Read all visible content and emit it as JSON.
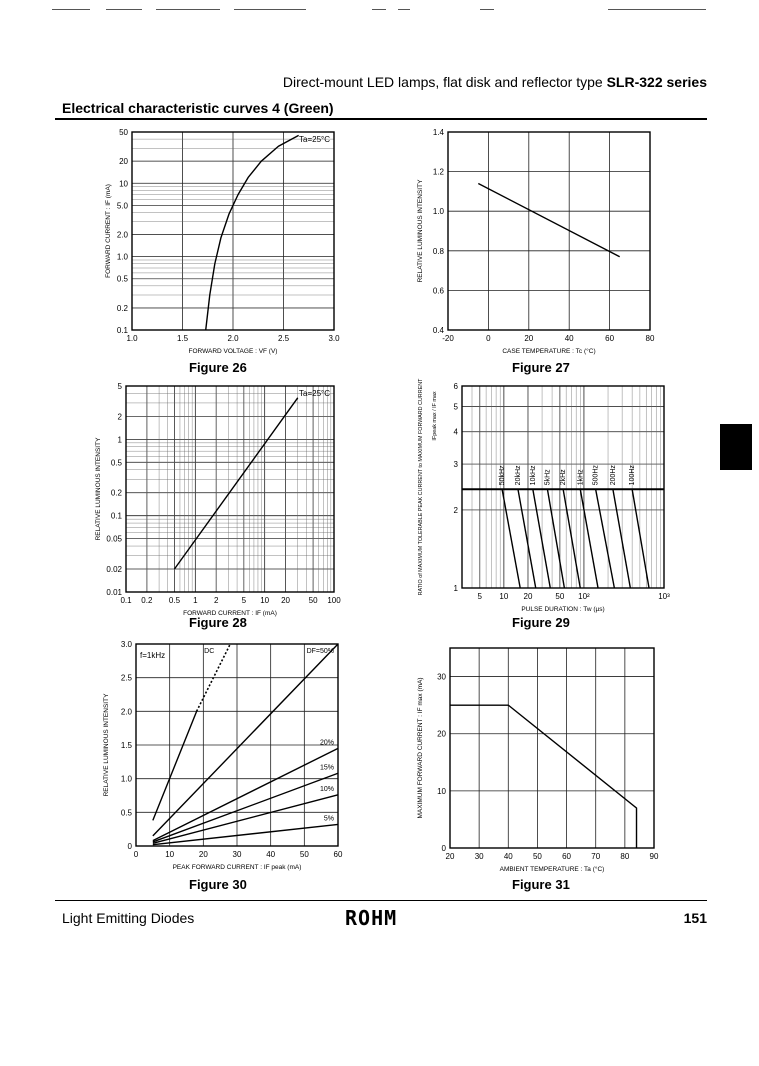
{
  "header": {
    "title_prefix": "Direct-mount LED lamps, flat disk and reflector type",
    "title_series": "SLR-322 series"
  },
  "section_title": "Electrical characteristic curves 4 (Green)",
  "footer": {
    "left": "Light Emitting Diodes",
    "logo": "ROHM",
    "page": "151"
  },
  "chart_data": [
    {
      "id": "fig26",
      "type": "line",
      "caption": "Figure 26",
      "xlabel": "FORWARD VOLTAGE : VF (V)",
      "ylabel": "FORWARD CURRENT : IF (mA)",
      "annotation": "Ta=25°C",
      "x_scale": "linear",
      "y_scale": "log",
      "xlim": [
        1.0,
        3.0
      ],
      "ylim": [
        0.1,
        50
      ],
      "x_ticks": [
        1.0,
        1.5,
        2.0,
        2.5,
        3.0
      ],
      "x_tick_labels": [
        "1.0",
        "1.5",
        "2.0",
        "2.5",
        "3.0"
      ],
      "y_ticks": [
        0.1,
        0.2,
        0.5,
        1.0,
        2.0,
        5.0,
        10,
        20,
        50
      ],
      "y_tick_labels": [
        "0.1",
        "0.2",
        "0.5",
        "1.0",
        "2.0",
        "5.0",
        "10",
        "20",
        "50"
      ],
      "series": [
        {
          "x": [
            1.73,
            1.77,
            1.82,
            1.88,
            1.96,
            2.05,
            2.15,
            2.28,
            2.45,
            2.65
          ],
          "y": [
            0.1,
            0.3,
            0.8,
            1.8,
            3.8,
            7,
            12,
            20,
            32,
            45
          ]
        }
      ]
    },
    {
      "id": "fig27",
      "type": "line",
      "caption": "Figure 27",
      "xlabel": "CASE TEMPERATURE : Tc (°C)",
      "ylabel": "RELATIVE LUMINOUS INTENSITY",
      "x_scale": "linear",
      "y_scale": "linear",
      "xlim": [
        -20,
        80
      ],
      "ylim": [
        0.4,
        1.4
      ],
      "x_ticks": [
        -20,
        0,
        20,
        40,
        60,
        80
      ],
      "x_tick_labels": [
        "-20",
        "0",
        "20",
        "40",
        "60",
        "80"
      ],
      "y_ticks": [
        0.4,
        0.6,
        0.8,
        1.0,
        1.2,
        1.4
      ],
      "y_tick_labels": [
        "0.4",
        "0.6",
        "0.8",
        "1.0",
        "1.2",
        "1.4"
      ],
      "series": [
        {
          "x": [
            -5,
            65
          ],
          "y": [
            1.14,
            0.77
          ]
        }
      ]
    },
    {
      "id": "fig28",
      "type": "line",
      "caption": "Figure 28",
      "xlabel": "FORWARD CURRENT : IF (mA)",
      "ylabel": "RELATIVE LUMINOUS INTENSITY",
      "annotation": "Ta=25°C",
      "x_scale": "log",
      "y_scale": "log",
      "xlim": [
        0.1,
        100
      ],
      "ylim": [
        0.01,
        5
      ],
      "x_ticks": [
        0.1,
        0.2,
        0.5,
        1,
        2,
        5,
        10,
        20,
        50,
        100
      ],
      "x_tick_labels": [
        "0.1",
        "0.2",
        "0.5",
        "1",
        "2",
        "5",
        "10",
        "20",
        "50",
        "100"
      ],
      "y_ticks": [
        0.01,
        0.02,
        0.05,
        0.1,
        0.2,
        0.5,
        1,
        2,
        5
      ],
      "y_tick_labels": [
        "0.01",
        "0.02",
        "0.05",
        "0.1",
        "0.2",
        "0.5",
        "1",
        "2",
        "5"
      ],
      "series": [
        {
          "x": [
            0.5,
            30
          ],
          "y": [
            0.02,
            3.5
          ]
        }
      ]
    },
    {
      "id": "fig29",
      "type": "line",
      "caption": "Figure 29",
      "xlabel": "PULSE DURATION : Tw (µs)",
      "ylabel": "RATIO of MAXIMUM TOLERABLE PEAK CURRENT to MAXIMUM FORWARD CURRENT",
      "ylabel_side": "IFpeak max / IF max",
      "x_scale": "log",
      "y_scale": "log",
      "xlim": [
        3,
        1000
      ],
      "ylim": [
        1,
        6
      ],
      "x_ticks": [
        5,
        10,
        20,
        50,
        100,
        1000
      ],
      "x_tick_labels": [
        "5",
        "10",
        "20",
        "50",
        "10²",
        "10³"
      ],
      "y_ticks": [
        1,
        2,
        3,
        4,
        5,
        6
      ],
      "y_tick_labels": [
        "1",
        "2",
        "3",
        "4",
        "5",
        "6"
      ],
      "ceiling": 2.4,
      "series": [
        {
          "name": "50kHz",
          "x": [
            9.5,
            16
          ],
          "y": [
            2.4,
            1
          ]
        },
        {
          "name": "20kHz",
          "x": [
            15,
            25
          ],
          "y": [
            2.4,
            1
          ]
        },
        {
          "name": "10kHz",
          "x": [
            23,
            38
          ],
          "y": [
            2.4,
            1
          ]
        },
        {
          "name": "5kHz",
          "x": [
            35,
            57
          ],
          "y": [
            2.4,
            1
          ]
        },
        {
          "name": "2kHz",
          "x": [
            55,
            90
          ],
          "y": [
            2.4,
            1
          ]
        },
        {
          "name": "1kHz",
          "x": [
            90,
            150
          ],
          "y": [
            2.4,
            1
          ]
        },
        {
          "name": "500Hz",
          "x": [
            140,
            240
          ],
          "y": [
            2.4,
            1
          ]
        },
        {
          "name": "200Hz",
          "x": [
            230,
            380
          ],
          "y": [
            2.4,
            1
          ]
        },
        {
          "name": "100Hz",
          "x": [
            400,
            650
          ],
          "y": [
            2.4,
            1
          ]
        }
      ]
    },
    {
      "id": "fig30",
      "type": "line",
      "caption": "Figure 30",
      "xlabel": "PEAK FORWARD CURRENT : IF peak (mA)",
      "ylabel": "RELATIVE LUMINOUS INTENSITY",
      "annotation": "f=1kHz",
      "x_scale": "linear",
      "y_scale": "linear",
      "xlim": [
        0,
        60
      ],
      "ylim": [
        0,
        3.0
      ],
      "x_ticks": [
        0,
        10,
        20,
        30,
        40,
        50,
        60
      ],
      "x_tick_labels": [
        "0",
        "10",
        "20",
        "30",
        "40",
        "50",
        "60"
      ],
      "y_ticks": [
        0,
        0.5,
        1.0,
        1.5,
        2.0,
        2.5,
        3.0
      ],
      "y_tick_labels": [
        "0",
        "0.5",
        "1.0",
        "1.5",
        "2.0",
        "2.5",
        "3.0"
      ],
      "series": [
        {
          "name": "DC",
          "x": [
            5,
            18,
            28
          ],
          "y": [
            0.38,
            2.0,
            3.0
          ],
          "style": "solid-dotted"
        },
        {
          "name": "DF=50%",
          "x": [
            5,
            60
          ],
          "y": [
            0.15,
            3.0
          ]
        },
        {
          "name": "20%",
          "x": [
            5,
            60
          ],
          "y": [
            0.08,
            1.45
          ]
        },
        {
          "name": "15%",
          "x": [
            5,
            60
          ],
          "y": [
            0.06,
            1.08
          ]
        },
        {
          "name": "10%",
          "x": [
            5,
            60
          ],
          "y": [
            0.04,
            0.76
          ]
        },
        {
          "name": "5%",
          "x": [
            5,
            60
          ],
          "y": [
            0.02,
            0.32
          ]
        }
      ]
    },
    {
      "id": "fig31",
      "type": "line",
      "caption": "Figure 31",
      "xlabel": "AMBIENT TEMPERATURE : Ta (°C)",
      "ylabel": "MAXIMUM FORWARD CURRENT : IF max (mA)",
      "x_scale": "linear",
      "y_scale": "linear",
      "xlim": [
        20,
        90
      ],
      "ylim": [
        0,
        35
      ],
      "x_ticks": [
        20,
        30,
        40,
        50,
        60,
        70,
        80,
        90
      ],
      "x_tick_labels": [
        "20",
        "30",
        "40",
        "50",
        "60",
        "70",
        "80",
        "90"
      ],
      "y_ticks": [
        0,
        10,
        20,
        30
      ],
      "y_tick_labels": [
        "0",
        "10",
        "20",
        "30"
      ],
      "series": [
        {
          "x": [
            20,
            40,
            84,
            84
          ],
          "y": [
            25,
            25,
            7,
            0
          ]
        }
      ]
    }
  ]
}
